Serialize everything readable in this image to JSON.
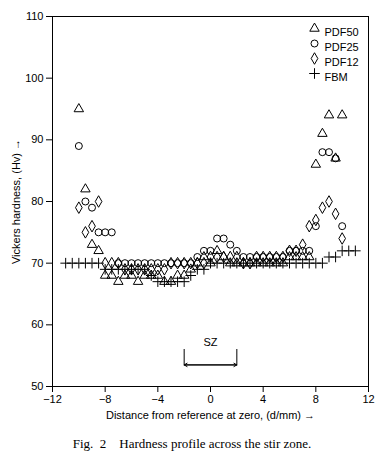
{
  "chart_data": {
    "type": "scatter",
    "xlabel": "Distance from reference at zero, (d/mm)",
    "ylabel": "Vickers hardness, (Hv)",
    "caption": "Fig.  2    Hardness profile across the stir zone.",
    "xlim": [
      -12,
      12
    ],
    "ylim": [
      50,
      110
    ],
    "xticks": [
      -12,
      -8,
      -4,
      0,
      4,
      8,
      12
    ],
    "yticks": [
      50,
      60,
      70,
      80,
      90,
      100,
      110
    ],
    "grid": false,
    "legend": "upper right",
    "color": "#000000",
    "annotations": [
      {
        "text": "SZ",
        "x1": -2,
        "x2": 2,
        "y": 53.5,
        "y_top": 56
      }
    ],
    "series": [
      {
        "name": "PDF50",
        "marker": "triangle",
        "x": [
          -10,
          -9.5,
          -9,
          -8.5,
          -8,
          -7.5,
          -7,
          -6.5,
          -6,
          -5.5,
          -5,
          -4.5,
          -4,
          -3.5,
          -3,
          -2.5,
          -2,
          -1.5,
          -1,
          -0.5,
          0,
          0.5,
          1,
          1.5,
          2,
          2.5,
          3,
          3.5,
          4,
          4.5,
          5,
          5.5,
          6,
          6.5,
          7,
          7.5,
          8,
          8.5,
          9,
          9.5,
          10
        ],
        "values": [
          95,
          82,
          73,
          72,
          68,
          68,
          67,
          68,
          68,
          67,
          68,
          68,
          68,
          67,
          67,
          68,
          68,
          69,
          70,
          71,
          70,
          72,
          71,
          70,
          70,
          70,
          70,
          70,
          70,
          70,
          70,
          70,
          71,
          71,
          71,
          71,
          86,
          91,
          94,
          87,
          94
        ]
      },
      {
        "name": "PDF25",
        "marker": "circle",
        "x": [
          -10,
          -9.5,
          -9,
          -8.5,
          -8,
          -7.5,
          -7,
          -6.5,
          -6,
          -5.5,
          -5,
          -4.5,
          -4,
          -3.5,
          -3,
          -2.5,
          -2,
          -1.5,
          -1,
          -0.5,
          0,
          0.5,
          1,
          1.5,
          2,
          2.5,
          3,
          3.5,
          4,
          4.5,
          5,
          5.5,
          6,
          6.5,
          7,
          7.5,
          8,
          8.5,
          9,
          9.5,
          10
        ],
        "values": [
          89,
          80,
          79,
          75,
          75,
          75,
          70,
          70,
          70,
          70,
          70,
          70,
          70,
          70,
          70,
          70,
          70,
          70,
          71,
          72,
          72,
          74,
          74,
          73,
          72,
          71,
          71,
          71,
          71,
          71,
          71,
          71,
          72,
          72,
          72,
          72,
          76,
          88,
          88,
          87,
          76
        ]
      },
      {
        "name": "PDF12",
        "marker": "diamond",
        "x": [
          -10,
          -9.5,
          -9,
          -8.5,
          -8,
          -7.5,
          -7,
          -6.5,
          -6,
          -5.5,
          -5,
          -4.5,
          -4,
          -3.5,
          -3,
          -2.5,
          -2,
          -1.5,
          -1,
          -0.5,
          0,
          0.5,
          1,
          1.5,
          2,
          2.5,
          3,
          3.5,
          4,
          4.5,
          5,
          5.5,
          6,
          6.5,
          7,
          7.5,
          8,
          8.5,
          9,
          9.5,
          10
        ],
        "values": [
          79,
          75,
          76,
          80,
          70,
          70,
          70,
          69,
          69,
          69,
          69,
          69,
          69,
          69,
          70,
          70,
          70,
          70,
          70,
          70,
          71,
          71,
          71,
          71,
          71,
          70,
          70,
          71,
          71,
          71,
          71,
          71,
          72,
          72,
          73,
          76,
          77,
          79,
          80,
          78,
          74
        ]
      },
      {
        "name": "FBM",
        "marker": "plus",
        "x": [
          -11,
          -10.5,
          -10,
          -9.5,
          -9,
          -8.5,
          -8,
          -7.5,
          -7,
          -6.5,
          -6,
          -5.5,
          -5,
          -4.5,
          -4,
          -3.5,
          -3,
          -2.5,
          -2,
          -1.5,
          -1,
          -0.5,
          0,
          0.5,
          1,
          1.5,
          2,
          2.5,
          3,
          3.5,
          4,
          4.5,
          5,
          5.5,
          6,
          6.5,
          7,
          7.5,
          8,
          8.5,
          9,
          9.5,
          10,
          10.5,
          11
        ],
        "values": [
          70,
          70,
          70,
          70,
          70,
          70,
          69,
          69,
          69,
          69,
          69,
          69,
          69,
          68,
          67,
          67,
          67,
          67,
          67,
          68,
          69,
          69,
          70,
          70,
          70,
          70,
          70,
          70,
          70,
          70,
          70,
          70,
          70,
          70,
          70,
          70,
          70,
          70,
          70,
          70,
          71,
          71,
          72,
          72,
          72
        ]
      }
    ]
  }
}
